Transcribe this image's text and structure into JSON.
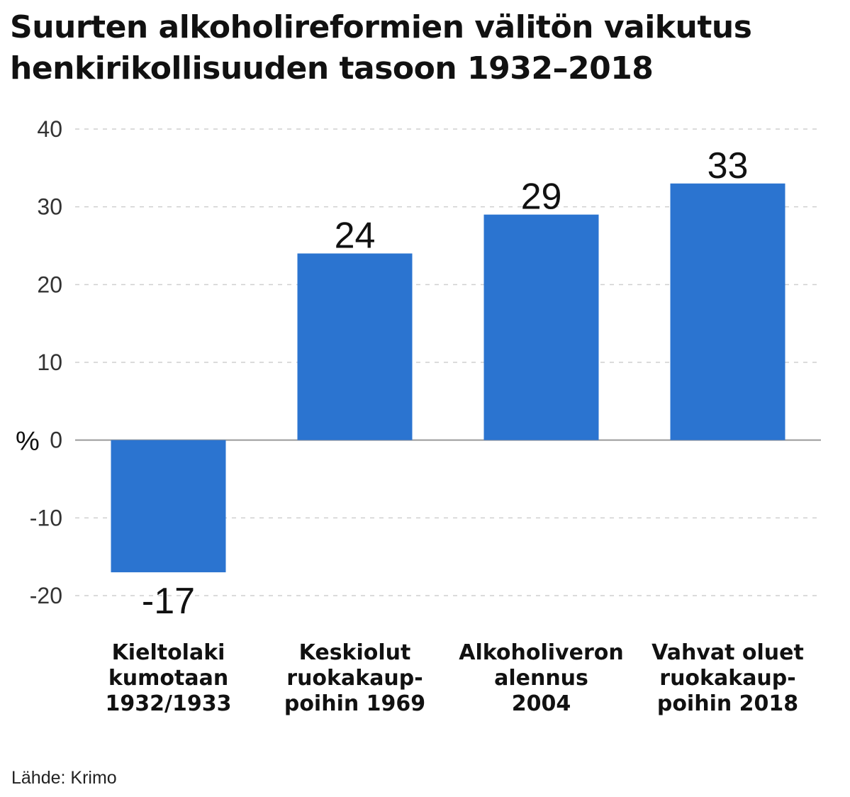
{
  "chart_data": {
    "type": "bar",
    "title_lines": [
      "Suurten alkoholireformien välitön vaikutus",
      "henkirikollisuuden tasoon 1932–2018"
    ],
    "ylabel": "%",
    "ylim": [
      -20,
      40
    ],
    "yticks": [
      -20,
      -10,
      0,
      10,
      20,
      30,
      40
    ],
    "ytick_labels": [
      "-20",
      "-10",
      "0",
      "10",
      "20",
      "30",
      "40"
    ],
    "grid": true,
    "bar_color": "#2b74d0",
    "categories": [
      [
        "Kieltolaki",
        "kumotaan",
        "1932/1933"
      ],
      [
        "Keskiolut",
        "ruokakaup-",
        "poihin 1969"
      ],
      [
        "Alkoholiveron",
        "alennus",
        "2004"
      ],
      [
        "Vahvat oluet",
        "ruokakaup-",
        "poihin 2018"
      ]
    ],
    "values": [
      -17,
      24,
      29,
      33
    ],
    "value_labels": [
      "-17",
      "24",
      "29",
      "33"
    ]
  },
  "source": "Lähde: Krimo"
}
